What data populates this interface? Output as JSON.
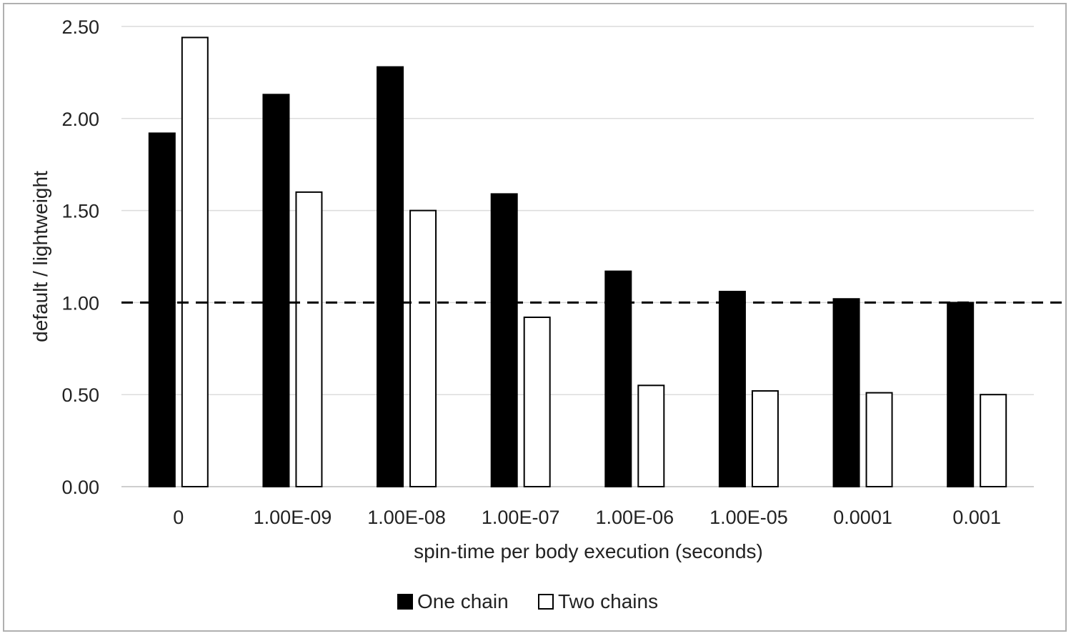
{
  "chart_data": {
    "type": "bar",
    "title": "",
    "xlabel": "spin-time per body execution (seconds)",
    "ylabel": "default / lightweight",
    "ylim": [
      0,
      2.5
    ],
    "yticks": [
      "0.00",
      "0.50",
      "1.00",
      "1.50",
      "2.00",
      "2.50"
    ],
    "categories": [
      "0",
      "1.00E-09",
      "1.00E-08",
      "1.00E-07",
      "1.00E-06",
      "1.00E-05",
      "0.0001",
      "0.001"
    ],
    "series": [
      {
        "name": "One chain",
        "fill": "#000000",
        "values": [
          1.92,
          2.13,
          2.28,
          1.59,
          1.17,
          1.06,
          1.02,
          1.0
        ]
      },
      {
        "name": "Two chains",
        "fill": "#ffffff",
        "values": [
          2.44,
          1.6,
          1.5,
          0.92,
          0.55,
          0.52,
          0.51,
          0.5
        ]
      }
    ],
    "reference_line": {
      "y": 1.0,
      "style": "dashed"
    },
    "grid": true,
    "legend_position": "bottom"
  }
}
